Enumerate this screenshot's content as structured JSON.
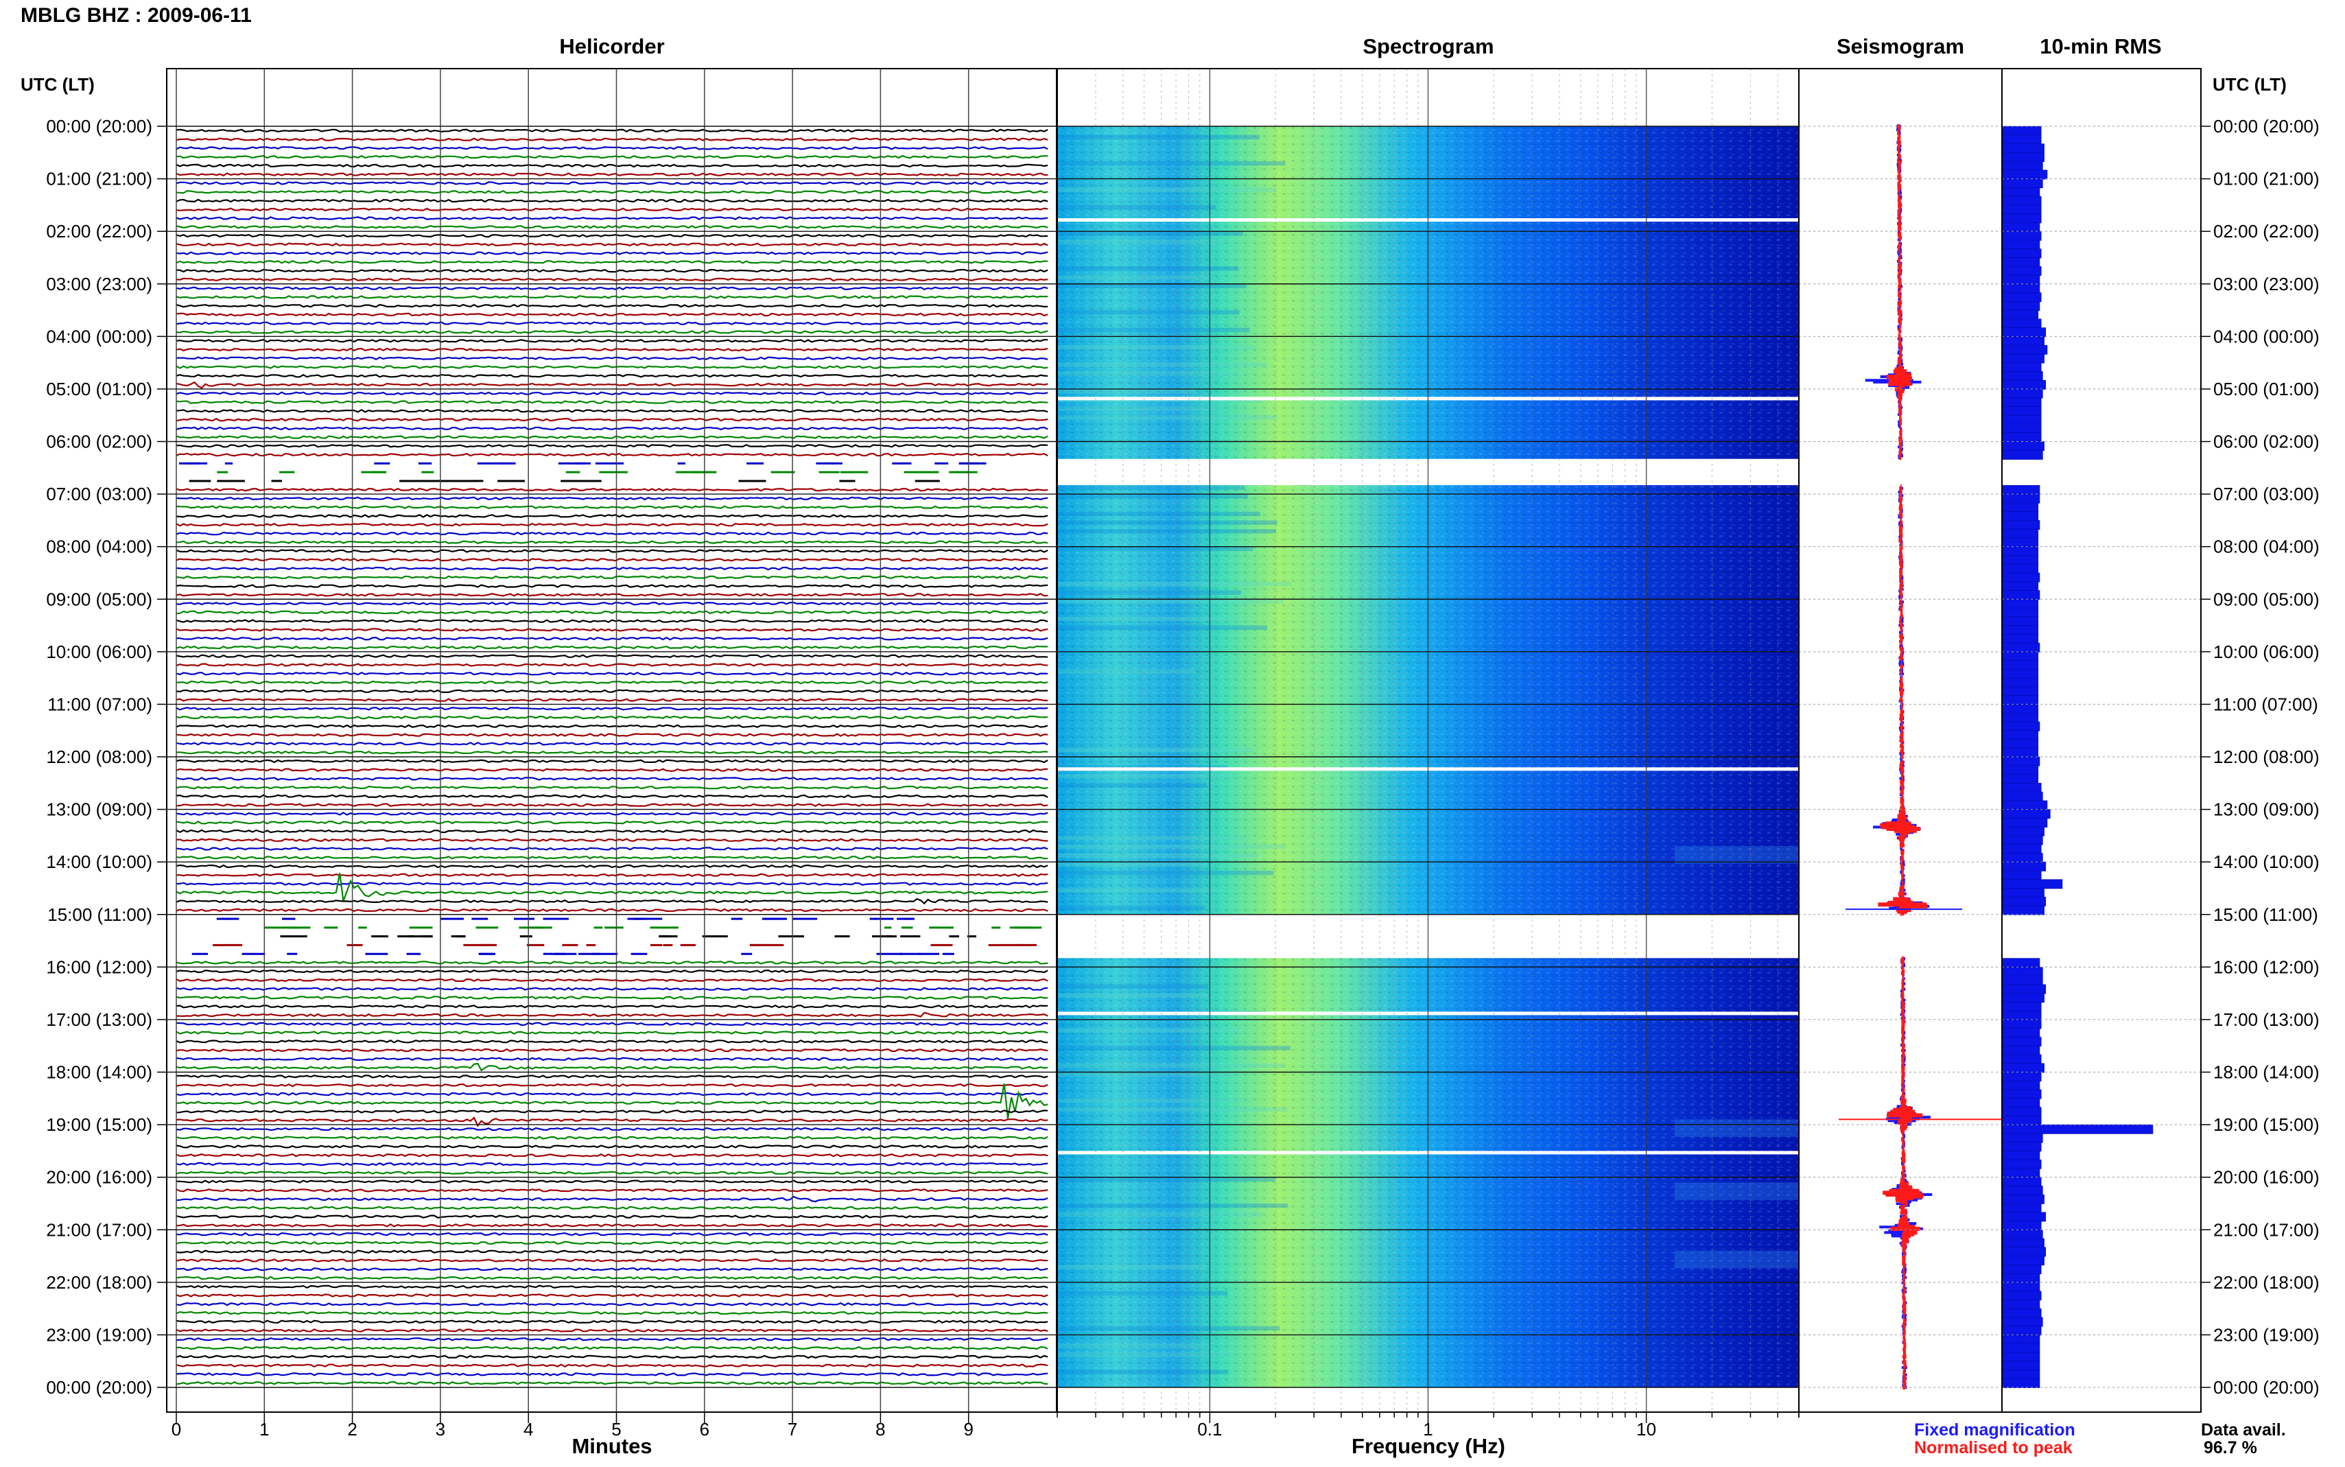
{
  "header": {
    "title": "MBLG BHZ : 2009-06-11"
  },
  "panels": {
    "helicorder": "Helicorder",
    "spectrogram": "Spectrogram",
    "seismogram": "Seismogram",
    "rms": "10-min RMS"
  },
  "axes": {
    "time_axis_label_left": "UTC (LT)",
    "time_axis_label_right": "UTC (LT)",
    "helicorder_xlabel": "Minutes",
    "spectrogram_xlabel": "Frequency (Hz)"
  },
  "legend": {
    "fixed": "Fixed magnification",
    "normalised": "Normalised to peak"
  },
  "data_availability": {
    "label": "Data avail.",
    "value": "96.7 %"
  },
  "colors": {
    "trace_cycle": [
      "#000000",
      "#a00000",
      "#0000cc",
      "#008800"
    ],
    "fixed": "#1a1aff",
    "normalised": "#ff1a1a",
    "rms_bar": "#0a14e6",
    "spectrogram_scale": [
      "#0000b0",
      "#0050f0",
      "#00b4f0",
      "#40e0b0",
      "#b0f060"
    ]
  },
  "chart_data": {
    "type": "heatmap",
    "time_tick_labels": [
      "00:00 (20:00)",
      "01:00 (21:00)",
      "02:00 (22:00)",
      "03:00 (23:00)",
      "04:00 (00:00)",
      "05:00 (01:00)",
      "06:00 (02:00)",
      "07:00 (03:00)",
      "08:00 (04:00)",
      "09:00 (05:00)",
      "10:00 (06:00)",
      "11:00 (07:00)",
      "12:00 (08:00)",
      "13:00 (09:00)",
      "14:00 (10:00)",
      "15:00 (11:00)",
      "16:00 (12:00)",
      "17:00 (13:00)",
      "18:00 (14:00)",
      "19:00 (15:00)",
      "20:00 (16:00)",
      "21:00 (17:00)",
      "22:00 (18:00)",
      "23:00 (19:00)",
      "00:00 (20:00)"
    ],
    "helicorder": {
      "xlabel": "Minutes",
      "x_ticks": [
        0,
        1,
        2,
        3,
        4,
        5,
        6,
        7,
        8,
        9
      ],
      "xlim": [
        0,
        10
      ],
      "rows_per_hour": 6,
      "gaps_utc_hours": [
        [
          6.33,
          6.83
        ],
        [
          15.0,
          15.83
        ]
      ],
      "events": [
        {
          "utc_hour": 4.83,
          "minute": 0.25,
          "amp": 0.5
        },
        {
          "utc_hour": 14.5,
          "minute": 1.9,
          "amp": 2.2
        },
        {
          "utc_hour": 14.67,
          "minute": 8.4,
          "amp": 0.5
        },
        {
          "utc_hour": 16.83,
          "minute": 8.5,
          "amp": 0.4
        },
        {
          "utc_hour": 17.83,
          "minute": 3.4,
          "amp": 0.5
        },
        {
          "utc_hour": 18.5,
          "minute": 9.45,
          "amp": 2.2
        },
        {
          "utc_hour": 18.83,
          "minute": 3.4,
          "amp": 0.8
        },
        {
          "utc_hour": 20.33,
          "minute": 7.0,
          "amp": 0.6
        }
      ]
    },
    "spectrogram": {
      "xlabel": "Frequency (Hz)",
      "x_scale": "log",
      "xlim": [
        0.02,
        50
      ],
      "x_ticks": [
        0.1,
        1,
        10
      ],
      "gaps_utc_hours": [
        [
          6.33,
          6.83
        ],
        [
          15.0,
          15.83
        ]
      ]
    },
    "seismogram": {
      "series": [
        "Fixed magnification",
        "Normalised to peak"
      ],
      "peak_utc_hours": [
        4.83,
        13.33,
        14.83,
        18.83,
        20.33,
        21.0
      ]
    },
    "rms": {
      "title": "10-min RMS",
      "values": [
        0.26,
        0.26,
        0.28,
        0.28,
        0.27,
        0.3,
        0.27,
        0.25,
        0.26,
        0.26,
        0.26,
        0.25,
        0.26,
        0.25,
        0.26,
        0.25,
        0.26,
        0.25,
        0.25,
        0.26,
        0.25,
        0.24,
        0.26,
        0.29,
        0.28,
        0.3,
        0.28,
        0.26,
        0.27,
        0.29,
        0.27,
        0.26,
        0.26,
        0.26,
        0.26,
        0.26,
        0.28,
        0.27,
        0.26,
        0.26,
        0.26,
        0.25,
        0.25,
        0.24,
        0.24,
        0.25,
        0.24,
        0.24,
        0.24,
        0.24,
        0.24,
        0.25,
        0.24,
        0.25,
        0.24,
        0.24,
        0.24,
        0.24,
        0.24,
        0.25,
        0.24,
        0.24,
        0.24,
        0.24,
        0.24,
        0.24,
        0.24,
        0.24,
        0.25,
        0.24,
        0.24,
        0.24,
        0.25,
        0.24,
        0.24,
        0.26,
        0.27,
        0.3,
        0.32,
        0.3,
        0.28,
        0.27,
        0.26,
        0.27,
        0.29,
        0.26,
        0.4,
        0.28,
        0.29,
        0.28,
        0.28,
        0.28,
        0.25,
        0.25,
        0.26,
        0.25,
        0.27,
        0.27,
        0.29,
        0.28,
        0.26,
        0.26,
        0.26,
        0.25,
        0.26,
        0.25,
        0.26,
        0.28,
        0.26,
        0.25,
        0.26,
        0.25,
        0.26,
        0.26,
        0.6,
        0.27,
        0.26,
        0.25,
        0.26,
        0.25,
        0.26,
        0.27,
        0.28,
        0.26,
        0.29,
        0.26,
        0.27,
        0.28,
        0.29,
        0.28,
        0.26,
        0.25,
        0.25,
        0.26,
        0.25,
        0.26,
        0.27,
        0.26,
        0.25,
        0.25,
        0.25,
        0.25,
        0.25,
        0.25
      ],
      "peak_value": 1.0,
      "peak_utc_hour": 19.0
    }
  }
}
